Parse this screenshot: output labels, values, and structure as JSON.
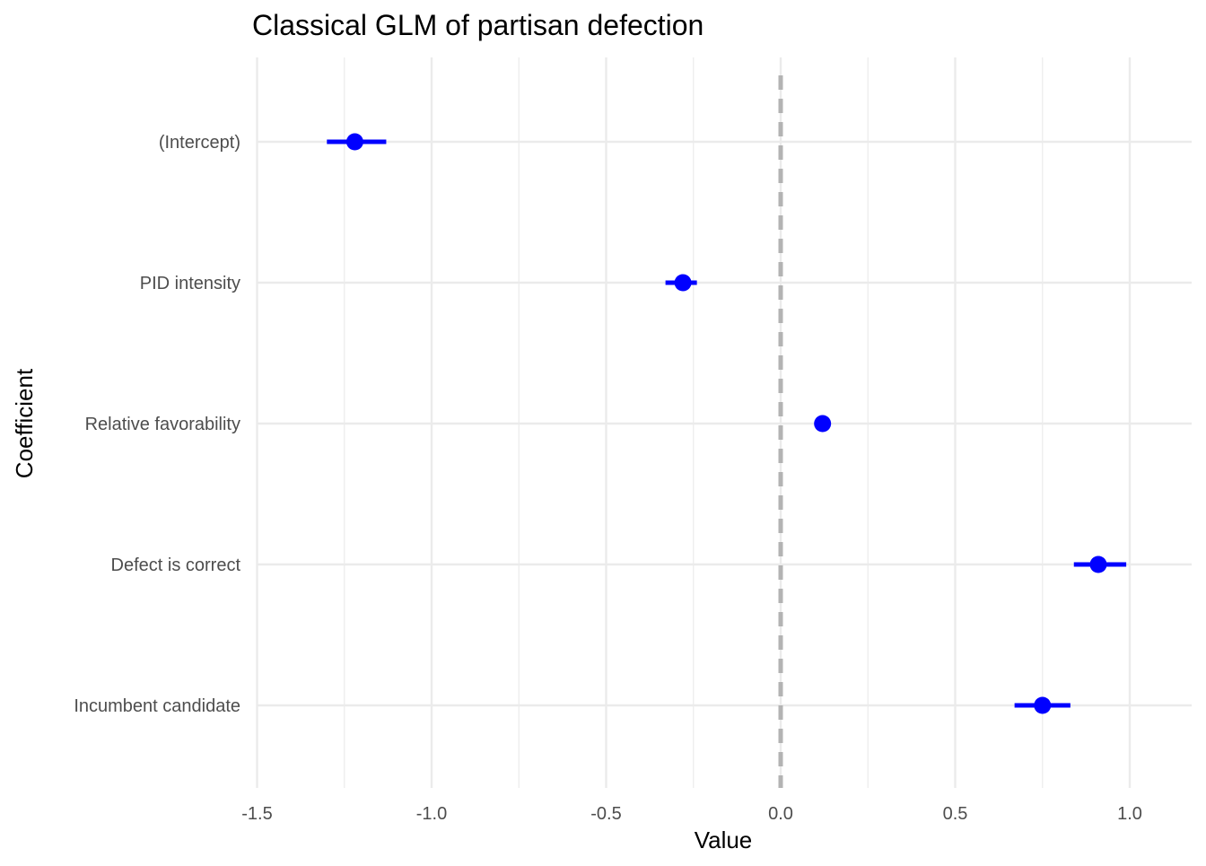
{
  "chart_data": {
    "type": "scatter",
    "title": "Classical GLM of partisan defection",
    "xlabel": "Value",
    "ylabel": "Coefficient",
    "xlim": [
      -1.5,
      1.15
    ],
    "x_ticks": [
      -1.5,
      -1.0,
      -0.5,
      0.0,
      0.5,
      1.0
    ],
    "x_tick_labels": [
      "-1.5",
      "-1.0",
      "-0.5",
      "0.0",
      "0.5",
      "1.0"
    ],
    "reference_line": {
      "x": 0,
      "style": "dashed",
      "color": "#b3b3b3"
    },
    "grid": true,
    "legend": "none",
    "point_color": "#0000ff",
    "coefficients": [
      {
        "name": "(Intercept)",
        "estimate": -1.22,
        "low": -1.3,
        "high": -1.13
      },
      {
        "name": "PID intensity",
        "estimate": -0.28,
        "low": -0.33,
        "high": -0.24
      },
      {
        "name": "Relative favorability",
        "estimate": 0.12,
        "low": 0.11,
        "high": 0.12
      },
      {
        "name": "Defect is correct",
        "estimate": 0.91,
        "low": 0.84,
        "high": 0.99
      },
      {
        "name": "Incumbent candidate",
        "estimate": 0.75,
        "low": 0.67,
        "high": 0.83
      }
    ]
  }
}
